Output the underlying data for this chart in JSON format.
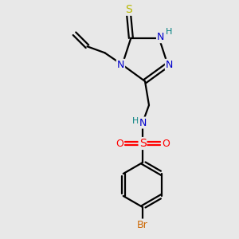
{
  "bg_color": "#e8e8e8",
  "atom_colors": {
    "C": "#000000",
    "N": "#0000cc",
    "S_thio": "#b8b800",
    "S_sulfo": "#ff0000",
    "O": "#ff0000",
    "Br": "#cc6600",
    "H": "#008080"
  },
  "figsize": [
    3.0,
    3.0
  ],
  "dpi": 100,
  "lw": 1.6
}
